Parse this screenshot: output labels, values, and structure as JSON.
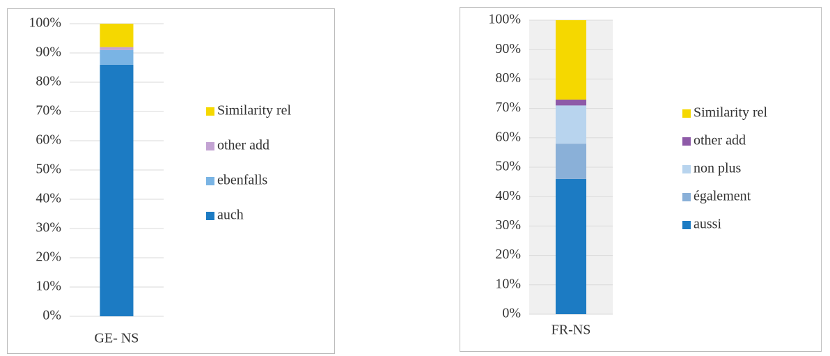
{
  "chart_data": [
    {
      "type": "bar",
      "stacked": true,
      "categories": [
        "GE- NS"
      ],
      "series": [
        {
          "name": "auch",
          "color": "#1c7bc3",
          "values": [
            86
          ]
        },
        {
          "name": "ebenfalls",
          "color": "#7ab4e4",
          "values": [
            5
          ]
        },
        {
          "name": "other add",
          "color": "#c3a3d3",
          "values": [
            1
          ]
        },
        {
          "name": "Similarity rel",
          "color": "#f5d800",
          "values": [
            8
          ]
        }
      ],
      "ylim": [
        0,
        100
      ],
      "yticks": [
        {
          "value": 0,
          "label": "0%"
        },
        {
          "value": 10,
          "label": "10%"
        },
        {
          "value": 20,
          "label": "20%"
        },
        {
          "value": 30,
          "label": "30%"
        },
        {
          "value": 40,
          "label": "40%"
        },
        {
          "value": 50,
          "label": "50%"
        },
        {
          "value": 60,
          "label": "60%"
        },
        {
          "value": 70,
          "label": "70%"
        },
        {
          "value": 80,
          "label": "80%"
        },
        {
          "value": 90,
          "label": "90%"
        },
        {
          "value": 100,
          "label": "100%"
        }
      ],
      "grid": true,
      "legend": "right"
    },
    {
      "type": "bar",
      "stacked": true,
      "categories": [
        "FR-NS"
      ],
      "series": [
        {
          "name": "aussi",
          "color": "#1c7bc3",
          "values": [
            46
          ]
        },
        {
          "name": "également",
          "color": "#8ab0d8",
          "values": [
            12
          ]
        },
        {
          "name": "non plus",
          "color": "#b8d4ee",
          "values": [
            13
          ]
        },
        {
          "name": "other add",
          "color": "#8e5aa8",
          "values": [
            2
          ]
        },
        {
          "name": "Similarity rel",
          "color": "#f5d800",
          "values": [
            27
          ]
        }
      ],
      "ylim": [
        0,
        100
      ],
      "yticks": [
        {
          "value": 0,
          "label": "0%"
        },
        {
          "value": 10,
          "label": "10%"
        },
        {
          "value": 20,
          "label": "20%"
        },
        {
          "value": 30,
          "label": "30%"
        },
        {
          "value": 40,
          "label": "40%"
        },
        {
          "value": 50,
          "label": "50%"
        },
        {
          "value": 60,
          "label": "60%"
        },
        {
          "value": 70,
          "label": "70%"
        },
        {
          "value": 80,
          "label": "80%"
        },
        {
          "value": 90,
          "label": "90%"
        },
        {
          "value": 100,
          "label": "100%"
        }
      ],
      "grid": true,
      "legend": "right"
    }
  ]
}
